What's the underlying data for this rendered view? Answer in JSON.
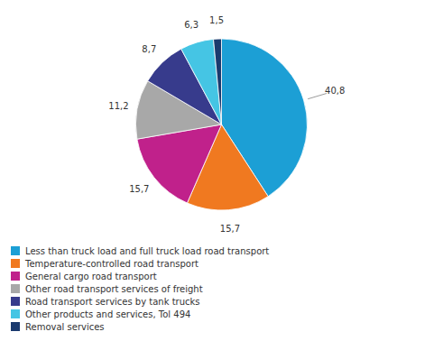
{
  "chart_data": {
    "type": "pie",
    "categories": [
      "Less than truck load and full truck load road transport",
      "Temperature-controlled road transport",
      "General cargo road transport",
      "Other road transport services of freight",
      "Road transport services by tank trucks",
      "Other products and services, Tol 494",
      "Removal services"
    ],
    "values": [
      40.8,
      15.7,
      15.7,
      11.2,
      8.7,
      6.3,
      1.5
    ],
    "value_labels": [
      "40,8",
      "15,7",
      "15,7",
      "11,2",
      "8,7",
      "6,3",
      "1,5"
    ],
    "colors": [
      "#1c9fd5",
      "#f07920",
      "#c0218b",
      "#a8a8a8",
      "#373b8c",
      "#45c5e4",
      "#1a3a6e"
    ],
    "data_labels": true,
    "legend": "bottom"
  }
}
